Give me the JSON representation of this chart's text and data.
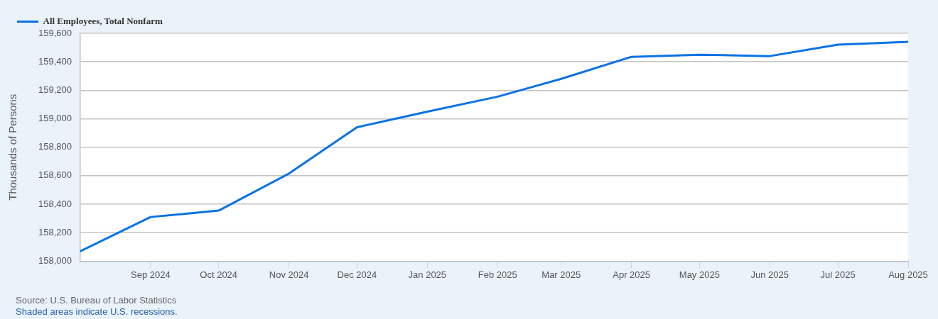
{
  "chart_data": {
    "type": "line",
    "ylabel": "Thousands of Persons",
    "x": [
      "2024-08",
      "2024-09",
      "2024-10",
      "2024-11",
      "2024-12",
      "2025-01",
      "2025-02",
      "2025-03",
      "2025-04",
      "2025-05",
      "2025-06",
      "2025-07",
      "2025-08"
    ],
    "series": [
      {
        "name": "All Employees, Total Nonfarm",
        "color": "#0b72e3",
        "values": [
          158070,
          158310,
          158355,
          158615,
          158940,
          159050,
          159155,
          159280,
          159435,
          159450,
          159440,
          159520,
          159540
        ]
      }
    ],
    "xlim": [
      "2024-08",
      "2025-08"
    ],
    "xticks": [
      {
        "value": "2024-09",
        "label": "Sep 2024"
      },
      {
        "value": "2024-10",
        "label": "Oct 2024"
      },
      {
        "value": "2024-11",
        "label": "Nov 2024"
      },
      {
        "value": "2024-12",
        "label": "Dec 2024"
      },
      {
        "value": "2025-01",
        "label": "Jan 2025"
      },
      {
        "value": "2025-02",
        "label": "Feb 2025"
      },
      {
        "value": "2025-03",
        "label": "Mar 2025"
      },
      {
        "value": "2025-04",
        "label": "Apr 2025"
      },
      {
        "value": "2025-05",
        "label": "May 2025"
      },
      {
        "value": "2025-06",
        "label": "Jun 2025"
      },
      {
        "value": "2025-07",
        "label": "Jul 2025"
      },
      {
        "value": "2025-08",
        "label": "Aug 2025"
      }
    ],
    "ylim": [
      158000,
      159600
    ],
    "yticks": [
      {
        "value": 158000,
        "label": "158,000"
      },
      {
        "value": 158200,
        "label": "158,200"
      },
      {
        "value": 158400,
        "label": "158,400"
      },
      {
        "value": 158600,
        "label": "158,600"
      },
      {
        "value": 158800,
        "label": "158,800"
      },
      {
        "value": 159000,
        "label": "159,000"
      },
      {
        "value": 159200,
        "label": "159,200"
      },
      {
        "value": 159400,
        "label": "159,400"
      },
      {
        "value": 159600,
        "label": "159,600"
      }
    ],
    "grid": "y",
    "legend": "top left",
    "marker": "none",
    "annotations": [
      "Source: U.S. Bureau of Labor Statistics",
      "Shaded areas indicate U.S. recessions."
    ]
  }
}
